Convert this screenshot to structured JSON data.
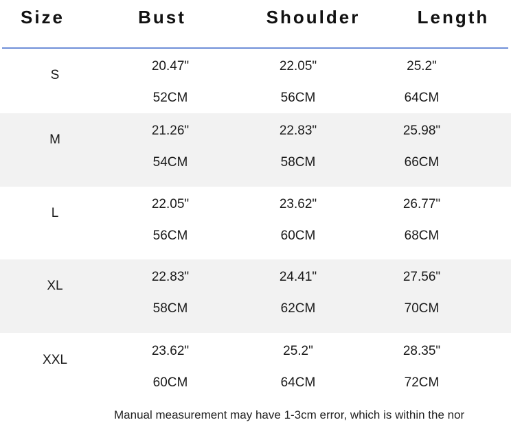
{
  "header": {
    "columns": [
      "Size",
      "Bust",
      "Shoulder",
      "Length"
    ]
  },
  "table": {
    "rows": [
      [
        "S",
        "20.47\"",
        "52CM",
        "22.05\"",
        "56CM",
        "25.2\"",
        "64CM"
      ],
      [
        "M",
        "21.26\"",
        "54CM",
        "22.83\"",
        "58CM",
        "25.98\"",
        "66CM"
      ],
      [
        "L",
        "22.05\"",
        "56CM",
        "23.62\"",
        "60CM",
        "26.77\"",
        "68CM"
      ],
      [
        "XL",
        "22.83\"",
        "58CM",
        "24.41\"",
        "62CM",
        "27.56\"",
        "70CM"
      ],
      [
        "XXL",
        "23.62\"",
        "60CM",
        "25.2\"",
        "64CM",
        "28.35\"",
        "72CM"
      ]
    ]
  },
  "note": "Manual measurement may have 1-3cm error, which is within the nor"
}
